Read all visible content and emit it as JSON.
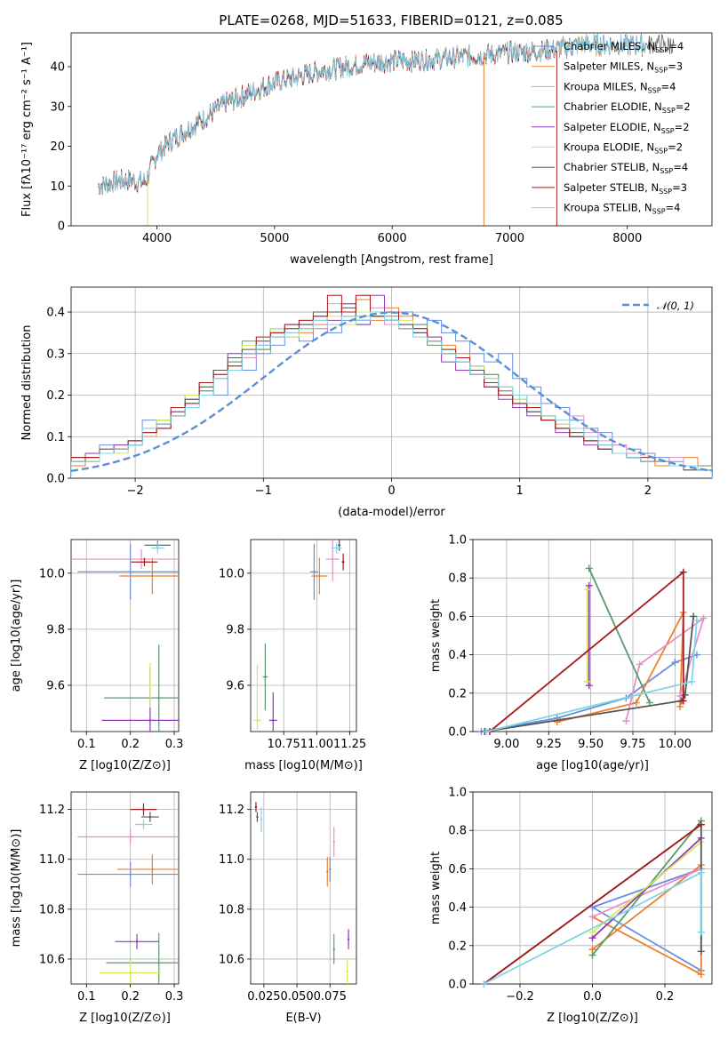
{
  "figure_title": "PLATE=0268, MJD=51633, FIBERID=0121, z=0.085",
  "colors": [
    "#6a8fdc",
    "#ee7f2d",
    "#e88fc7",
    "#5b9a6d",
    "#8e3bb5",
    "#d6e660",
    "#555555",
    "#a51c1c",
    "#7fd5e8"
  ],
  "chart_data": [
    {
      "type": "line",
      "title": "PLATE=0268, MJD=51633, FIBERID=0121, z=0.085",
      "xlabel": "wavelength [Angstrom, rest frame]",
      "ylabel": "Flux [fλ10⁻¹⁷ erg cm⁻² s⁻¹ A⁻¹]",
      "xlim": [
        3270,
        8720
      ],
      "ylim": [
        0,
        48.5
      ],
      "xticks": [
        4000,
        5000,
        6000,
        7000,
        8000
      ],
      "yticks": [
        0,
        10,
        20,
        30,
        40
      ],
      "grid": false,
      "legend_position": "top-right",
      "continuum": {
        "x": [
          3500,
          3700,
          3900,
          4000,
          4100,
          4200,
          4400,
          4600,
          4800,
          5000,
          5200,
          5400,
          5600,
          5800,
          6000,
          6200,
          6400,
          6600,
          6800,
          7000,
          7200,
          7400,
          7600
        ],
        "y": [
          10,
          11.5,
          11,
          18,
          21,
          23,
          27,
          31,
          33.5,
          36,
          37.5,
          39,
          40,
          41,
          41.5,
          41.5,
          42,
          42.5,
          43,
          43.5,
          43.8,
          44.5,
          45.5
        ]
      },
      "series": [
        {
          "name": "Chabrier MILES, N_SSP=4"
        },
        {
          "name": "Salpeter MILES, N_SSP=3"
        },
        {
          "name": "Kroupa MILES, N_SSP=4"
        },
        {
          "name": "Chabrier ELODIE, N_SSP=2"
        },
        {
          "name": "Salpeter ELODIE, N_SSP=2"
        },
        {
          "name": "Kroupa ELODIE, N_SSP=2"
        },
        {
          "name": "Chabrier STELIB, N_SSP=4"
        },
        {
          "name": "Salpeter STELIB, N_SSP=3"
        },
        {
          "name": "Kroupa STELIB, N_SSP=4"
        }
      ],
      "legend_items": [
        {
          "pre": "Chabrier MILES, N",
          "sub": "SSP",
          "post": "=4"
        },
        {
          "pre": "Salpeter MILES, N",
          "sub": "SSP",
          "post": "=3"
        },
        {
          "pre": "Kroupa MILES, N",
          "sub": "SSP",
          "post": "=4"
        },
        {
          "pre": "Chabrier ELODIE, N",
          "sub": "SSP",
          "post": "=2"
        },
        {
          "pre": "Salpeter ELODIE, N",
          "sub": "SSP",
          "post": "=2"
        },
        {
          "pre": "Kroupa ELODIE, N",
          "sub": "SSP",
          "post": "=2"
        },
        {
          "pre": "Chabrier STELIB, N",
          "sub": "SSP",
          "post": "=4"
        },
        {
          "pre": "Salpeter STELIB, N",
          "sub": "SSP",
          "post": "=3"
        },
        {
          "pre": "Kroupa STELIB, N",
          "sub": "SSP",
          "post": "=4"
        }
      ]
    },
    {
      "type": "histogram",
      "xlabel": "(data-model)/error",
      "ylabel": "Normed distribution",
      "xlim": [
        -2.5,
        2.5
      ],
      "ylim": [
        0,
        0.46
      ],
      "xticks": [
        -2,
        -1,
        0,
        1,
        2
      ],
      "yticks": [
        0.0,
        0.1,
        0.2,
        0.3,
        0.4
      ],
      "grid": true,
      "legend_position": "top-right",
      "legend": "N(0,1)",
      "bin_edges_range": [
        -2.5,
        2.5
      ],
      "bins": 45,
      "series_values": [
        [
          0.04,
          0.05,
          0.08,
          0.06,
          0.09,
          0.14,
          0.12,
          0.15,
          0.19,
          0.21,
          0.2,
          0.28,
          0.26,
          0.3,
          0.32,
          0.34,
          0.33,
          0.36,
          0.35,
          0.38,
          0.37,
          0.4,
          0.38,
          0.4,
          0.37,
          0.38,
          0.35,
          0.33,
          0.3,
          0.28,
          0.3,
          0.24,
          0.22,
          0.18,
          0.17,
          0.14,
          0.12,
          0.11,
          0.08,
          0.07,
          0.06,
          0.05,
          0.04,
          0.03,
          0.03
        ],
        [
          0.03,
          0.05,
          0.06,
          0.07,
          0.08,
          0.1,
          0.12,
          0.15,
          0.18,
          0.2,
          0.25,
          0.27,
          0.3,
          0.31,
          0.34,
          0.36,
          0.35,
          0.37,
          0.4,
          0.39,
          0.43,
          0.38,
          0.41,
          0.39,
          0.36,
          0.34,
          0.32,
          0.3,
          0.27,
          0.25,
          0.22,
          0.2,
          0.18,
          0.15,
          0.13,
          0.1,
          0.09,
          0.07,
          0.06,
          0.05,
          0.04,
          0.03,
          0.03,
          0.05,
          0.02
        ],
        [
          0.05,
          0.04,
          0.07,
          0.08,
          0.08,
          0.12,
          0.14,
          0.16,
          0.18,
          0.22,
          0.25,
          0.26,
          0.29,
          0.33,
          0.35,
          0.34,
          0.38,
          0.36,
          0.42,
          0.4,
          0.39,
          0.41,
          0.37,
          0.36,
          0.35,
          0.33,
          0.31,
          0.29,
          0.26,
          0.23,
          0.21,
          0.18,
          0.16,
          0.14,
          0.12,
          0.15,
          0.11,
          0.09,
          0.08,
          0.06,
          0.05,
          0.04,
          0.05,
          0.03,
          0.02
        ],
        [
          0.05,
          0.04,
          0.06,
          0.07,
          0.09,
          0.11,
          0.14,
          0.16,
          0.19,
          0.21,
          0.24,
          0.28,
          0.33,
          0.31,
          0.36,
          0.35,
          0.37,
          0.38,
          0.4,
          0.42,
          0.38,
          0.4,
          0.39,
          0.36,
          0.37,
          0.32,
          0.3,
          0.28,
          0.27,
          0.25,
          0.21,
          0.19,
          0.16,
          0.15,
          0.12,
          0.1,
          0.09,
          0.07,
          0.06,
          0.05,
          0.04,
          0.04,
          0.03,
          0.02,
          0.03
        ],
        [
          0.05,
          0.06,
          0.06,
          0.08,
          0.09,
          0.1,
          0.13,
          0.16,
          0.2,
          0.23,
          0.26,
          0.3,
          0.3,
          0.33,
          0.34,
          0.37,
          0.36,
          0.39,
          0.38,
          0.42,
          0.37,
          0.44,
          0.38,
          0.37,
          0.35,
          0.34,
          0.28,
          0.26,
          0.25,
          0.22,
          0.19,
          0.17,
          0.15,
          0.14,
          0.11,
          0.1,
          0.08,
          0.07,
          0.06,
          0.05,
          0.04,
          0.04,
          0.03,
          0.03,
          0.02
        ],
        [
          0.04,
          0.04,
          0.06,
          0.06,
          0.08,
          0.1,
          0.14,
          0.15,
          0.2,
          0.22,
          0.25,
          0.29,
          0.32,
          0.34,
          0.36,
          0.34,
          0.36,
          0.38,
          0.39,
          0.37,
          0.4,
          0.39,
          0.4,
          0.38,
          0.34,
          0.33,
          0.31,
          0.29,
          0.27,
          0.24,
          0.22,
          0.19,
          0.17,
          0.15,
          0.13,
          0.11,
          0.09,
          0.08,
          0.06,
          0.05,
          0.05,
          0.04,
          0.03,
          0.03,
          0.02
        ],
        [
          0.04,
          0.05,
          0.07,
          0.07,
          0.08,
          0.11,
          0.13,
          0.15,
          0.19,
          0.22,
          0.26,
          0.29,
          0.31,
          0.32,
          0.35,
          0.36,
          0.37,
          0.4,
          0.4,
          0.41,
          0.38,
          0.39,
          0.38,
          0.37,
          0.35,
          0.33,
          0.3,
          0.28,
          0.26,
          0.23,
          0.2,
          0.18,
          0.16,
          0.14,
          0.12,
          0.11,
          0.09,
          0.08,
          0.06,
          0.05,
          0.04,
          0.04,
          0.03,
          0.02,
          0.02
        ],
        [
          0.05,
          0.05,
          0.06,
          0.07,
          0.09,
          0.11,
          0.12,
          0.17,
          0.18,
          0.23,
          0.25,
          0.27,
          0.3,
          0.34,
          0.35,
          0.37,
          0.38,
          0.39,
          0.44,
          0.4,
          0.44,
          0.39,
          0.4,
          0.36,
          0.36,
          0.33,
          0.31,
          0.29,
          0.25,
          0.22,
          0.2,
          0.18,
          0.17,
          0.14,
          0.12,
          0.1,
          0.09,
          0.07,
          0.06,
          0.05,
          0.05,
          0.04,
          0.03,
          0.03,
          0.02
        ],
        [
          0.04,
          0.04,
          0.06,
          0.07,
          0.08,
          0.12,
          0.13,
          0.15,
          0.17,
          0.2,
          0.24,
          0.26,
          0.3,
          0.32,
          0.34,
          0.35,
          0.36,
          0.38,
          0.37,
          0.39,
          0.38,
          0.4,
          0.38,
          0.36,
          0.34,
          0.33,
          0.3,
          0.28,
          0.25,
          0.24,
          0.22,
          0.2,
          0.18,
          0.15,
          0.14,
          0.12,
          0.1,
          0.08,
          0.06,
          0.05,
          0.04,
          0.04,
          0.03,
          0.03,
          0.02
        ]
      ]
    },
    {
      "type": "scatter",
      "xlabel": "Z [log10(Z/Z⊙)]",
      "ylabel": "age [log10(age/yr)]",
      "xlim": [
        0.065,
        0.31
      ],
      "ylim": [
        9.435,
        10.12
      ],
      "xticks": [
        0.1,
        0.2,
        0.3
      ],
      "yticks": [
        9.6,
        9.8,
        10.0
      ],
      "grid": true,
      "points": [
        {
          "x": 0.2,
          "y": 10.005,
          "xerr": 0.12,
          "yerr": 0.1
        },
        {
          "x": 0.25,
          "y": 9.99,
          "xerr": 0.075,
          "yerr": 0.065
        },
        {
          "x": 0.225,
          "y": 10.05,
          "xerr": 0.19,
          "yerr": 0.035
        },
        {
          "x": 0.265,
          "y": 9.555,
          "xerr": 0.125,
          "yerr": 0.19
        },
        {
          "x": 0.245,
          "y": 9.475,
          "xerr": 0.11,
          "yerr": 0.19
        },
        {
          "x": 0.245,
          "y": 9.6,
          "xerr": 0.005,
          "yerr": 0.08
        },
        {
          "x": 0.262,
          "y": 10.1,
          "xerr": 0.03,
          "yerr": 0.015
        },
        {
          "x": 0.232,
          "y": 10.04,
          "xerr": 0.03,
          "yerr": 0.015
        },
        {
          "x": 0.262,
          "y": 10.09,
          "xerr": 0.015,
          "yerr": 0.02
        }
      ]
    },
    {
      "type": "scatter",
      "xlabel": "mass [log10(M/M⊙)]",
      "ylabel": "",
      "xlim": [
        10.5,
        11.3
      ],
      "ylim": [
        9.435,
        10.12
      ],
      "xticks": [
        10.75,
        11.0,
        11.25
      ],
      "yticks": [
        9.6,
        9.8,
        10.0
      ],
      "grid": true,
      "points": [
        {
          "x": 10.98,
          "y": 10.005,
          "xerr": 0.03,
          "yerr": 0.1
        },
        {
          "x": 11.02,
          "y": 9.99,
          "xerr": 0.06,
          "yerr": 0.065
        },
        {
          "x": 11.12,
          "y": 10.05,
          "xerr": 0.05,
          "yerr": 0.08
        },
        {
          "x": 10.61,
          "y": 9.63,
          "xerr": 0.02,
          "yerr": 0.12
        },
        {
          "x": 10.67,
          "y": 9.475,
          "xerr": 0.03,
          "yerr": 0.1
        },
        {
          "x": 10.55,
          "y": 9.475,
          "xerr": 0.03,
          "yerr": 0.2
        },
        {
          "x": 11.17,
          "y": 10.1,
          "xerr": 0.01,
          "yerr": 0.02
        },
        {
          "x": 11.2,
          "y": 10.04,
          "xerr": 0.01,
          "yerr": 0.03
        },
        {
          "x": 11.15,
          "y": 10.09,
          "xerr": 0.04,
          "yerr": 0.02
        }
      ]
    },
    {
      "type": "line",
      "xlabel": "age [log10(age/yr)]",
      "ylabel": "mass weight",
      "xlim": [
        8.8,
        10.22
      ],
      "ylim": [
        0,
        1
      ],
      "xticks": [
        9.0,
        9.25,
        9.5,
        9.75,
        10.0
      ],
      "yticks": [
        0.0,
        0.2,
        0.4,
        0.6,
        0.8,
        1.0
      ],
      "grid": true,
      "series": [
        {
          "x": [
            8.85,
            9.3,
            9.71,
            10.0,
            10.13
          ],
          "y": [
            0.0,
            0.07,
            0.175,
            0.36,
            0.4
          ]
        },
        {
          "x": [
            9.3,
            9.77,
            10.05,
            10.03
          ],
          "y": [
            0.05,
            0.15,
            0.62,
            0.13
          ]
        },
        {
          "x": [
            9.71,
            9.79,
            10.17,
            10.03
          ],
          "y": [
            0.055,
            0.35,
            0.59,
            0.185
          ]
        },
        {
          "x": [
            9.49,
            9.85
          ],
          "y": [
            0.85,
            0.15
          ]
        },
        {
          "x": [
            9.49,
            9.49
          ],
          "y": [
            0.76,
            0.24
          ]
        },
        {
          "x": [
            9.48,
            9.48
          ],
          "y": [
            0.74,
            0.26
          ]
        },
        {
          "x": [
            8.87,
            10.04,
            10.06,
            10.11
          ],
          "y": [
            0.0,
            0.16,
            0.19,
            0.6
          ]
        },
        {
          "x": [
            8.9,
            10.05,
            10.05
          ],
          "y": [
            0.0,
            0.83,
            0.16
          ]
        },
        {
          "x": [
            8.88,
            10.1,
            10.13
          ],
          "y": [
            0.0,
            0.26,
            0.58
          ]
        }
      ]
    },
    {
      "type": "scatter",
      "xlabel": "Z [log10(Z/Z⊙)]",
      "ylabel": "mass [log10(M/M⊙)]",
      "xlim": [
        0.065,
        0.31
      ],
      "ylim": [
        10.5,
        11.27
      ],
      "xticks": [
        0.1,
        0.2,
        0.3
      ],
      "yticks": [
        10.6,
        10.8,
        11.0,
        11.2
      ],
      "grid": true,
      "points": [
        {
          "x": 0.2,
          "y": 10.94,
          "xerr": 0.12,
          "yerr": 0.05
        },
        {
          "x": 0.25,
          "y": 10.96,
          "xerr": 0.08,
          "yerr": 0.06
        },
        {
          "x": 0.2,
          "y": 11.09,
          "xerr": 0.12,
          "yerr": 0.03
        },
        {
          "x": 0.265,
          "y": 10.585,
          "xerr": 0.12,
          "yerr": 0.12
        },
        {
          "x": 0.215,
          "y": 10.67,
          "xerr": 0.05,
          "yerr": 0.03
        },
        {
          "x": 0.2,
          "y": 10.545,
          "xerr": 0.07,
          "yerr": 0.05
        },
        {
          "x": 0.245,
          "y": 11.17,
          "xerr": 0.02,
          "yerr": 0.02
        },
        {
          "x": 0.23,
          "y": 11.2,
          "xerr": 0.03,
          "yerr": 0.025
        },
        {
          "x": 0.23,
          "y": 11.14,
          "xerr": 0.02,
          "yerr": 0.02
        }
      ]
    },
    {
      "type": "scatter",
      "xlabel": "E(B-V)",
      "ylabel": "",
      "xlim": [
        0.015,
        0.095
      ],
      "ylim": [
        10.5,
        11.27
      ],
      "xticks": [
        0.025,
        0.05,
        0.075
      ],
      "xtick_labels": [
        "0.025",
        "0.050",
        "0.075"
      ],
      "tick_labels_run_together": true,
      "yticks": [
        10.6,
        10.8,
        11.0,
        11.2
      ],
      "grid": true,
      "points": [
        {
          "x": 0.075,
          "y": 10.96,
          "yerr": 0.05
        },
        {
          "x": 0.073,
          "y": 10.95,
          "yerr": 0.06
        },
        {
          "x": 0.078,
          "y": 11.07,
          "yerr": 0.06
        },
        {
          "x": 0.078,
          "y": 10.64,
          "yerr": 0.06
        },
        {
          "x": 0.089,
          "y": 10.68,
          "yerr": 0.04
        },
        {
          "x": 0.088,
          "y": 10.55,
          "yerr": 0.05
        },
        {
          "x": 0.02,
          "y": 11.17,
          "yerr": 0.02
        },
        {
          "x": 0.019,
          "y": 11.21,
          "yerr": 0.02
        },
        {
          "x": 0.023,
          "y": 11.16,
          "yerr": 0.05
        }
      ]
    },
    {
      "type": "line",
      "xlabel": "Z [log10(Z/Z⊙)]",
      "ylabel": "mass weight",
      "xlim": [
        -0.33,
        0.33
      ],
      "ylim": [
        0,
        1
      ],
      "xticks": [
        -0.2,
        0.0,
        0.2
      ],
      "yticks": [
        0.0,
        0.2,
        0.4,
        0.6,
        0.8,
        1.0
      ],
      "grid": true,
      "series": [
        {
          "x": [
            0.3,
            0.0,
            0.3
          ],
          "y": [
            0.07,
            0.4,
            0.6
          ]
        },
        {
          "x": [
            0.0,
            0.3,
            0.3,
            0.0
          ],
          "y": [
            0.18,
            0.62,
            0.05,
            0.35
          ]
        },
        {
          "x": [
            0.0,
            0.3
          ],
          "y": [
            0.35,
            0.6
          ]
        },
        {
          "x": [
            0.0,
            0.3
          ],
          "y": [
            0.15,
            0.85
          ]
        },
        {
          "x": [
            0.0,
            0.3
          ],
          "y": [
            0.24,
            0.76
          ]
        },
        {
          "x": [
            0.0,
            0.3
          ],
          "y": [
            0.27,
            0.74
          ]
        },
        {
          "x": [
            -0.3,
            0.3,
            0.3
          ],
          "y": [
            0.0,
            0.83,
            0.17
          ]
        },
        {
          "x": [
            -0.3,
            0.3
          ],
          "y": [
            0.0,
            0.83
          ]
        },
        {
          "x": [
            -0.3,
            0.3,
            0.3
          ],
          "y": [
            0.0,
            0.58,
            0.27
          ]
        }
      ]
    }
  ]
}
